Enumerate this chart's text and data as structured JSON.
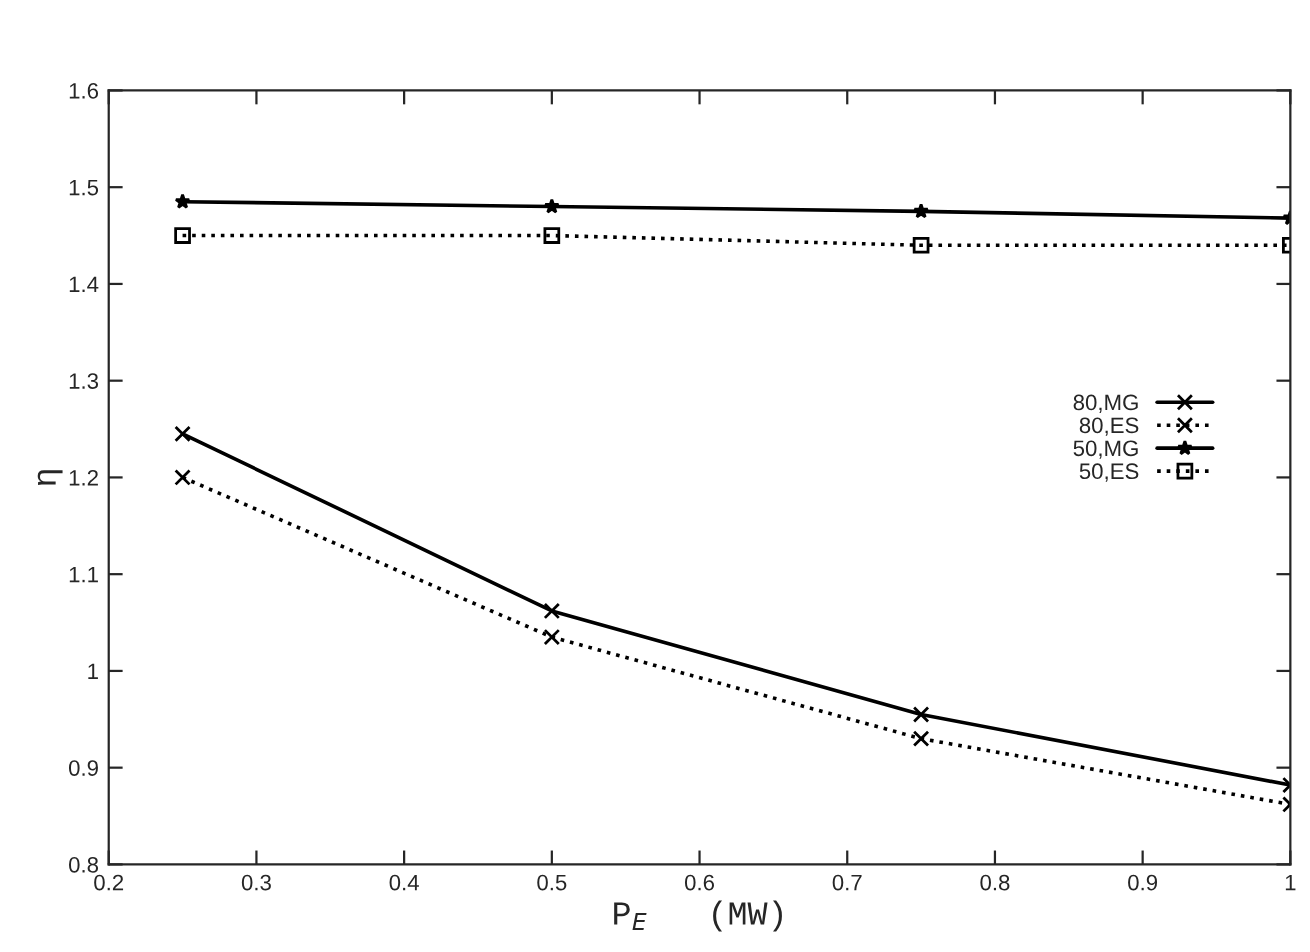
{
  "chart_data": {
    "type": "line",
    "xlabel": "P$_{E}$   (MW)",
    "ylabel": "η",
    "x": [
      0.25,
      0.5,
      0.75,
      1
    ],
    "series": [
      {
        "name": "80,MG",
        "color": "#000000",
        "values": [
          1.245,
          1.062,
          0.955,
          0.882
        ],
        "marker": "cross",
        "line_style": "solid"
      },
      {
        "name": "80,ES",
        "color": "#000000",
        "values": [
          1.2,
          1.035,
          0.93,
          0.862
        ],
        "marker": "cross",
        "line_style": "dotted"
      },
      {
        "name": "50,MG",
        "color": "#000000",
        "values": [
          1.485,
          1.48,
          1.475,
          1.468
        ],
        "marker": "star",
        "line_style": "solid"
      },
      {
        "name": "50,ES",
        "color": "#000000",
        "values": [
          1.45,
          1.45,
          1.44,
          1.44
        ],
        "marker": "square",
        "line_style": "dotted"
      }
    ],
    "xlim": [
      0.2,
      1
    ],
    "xticks": [
      0.2,
      0.3,
      0.4,
      0.5,
      0.6,
      0.7,
      0.8,
      0.9,
      1
    ],
    "ylim": [
      0.8,
      1.6
    ],
    "yticks": [
      0.8,
      0.9,
      1,
      1.1,
      1.2,
      1.3,
      1.4,
      1.5,
      1.6
    ],
    "grid": false,
    "legend": "center right"
  }
}
